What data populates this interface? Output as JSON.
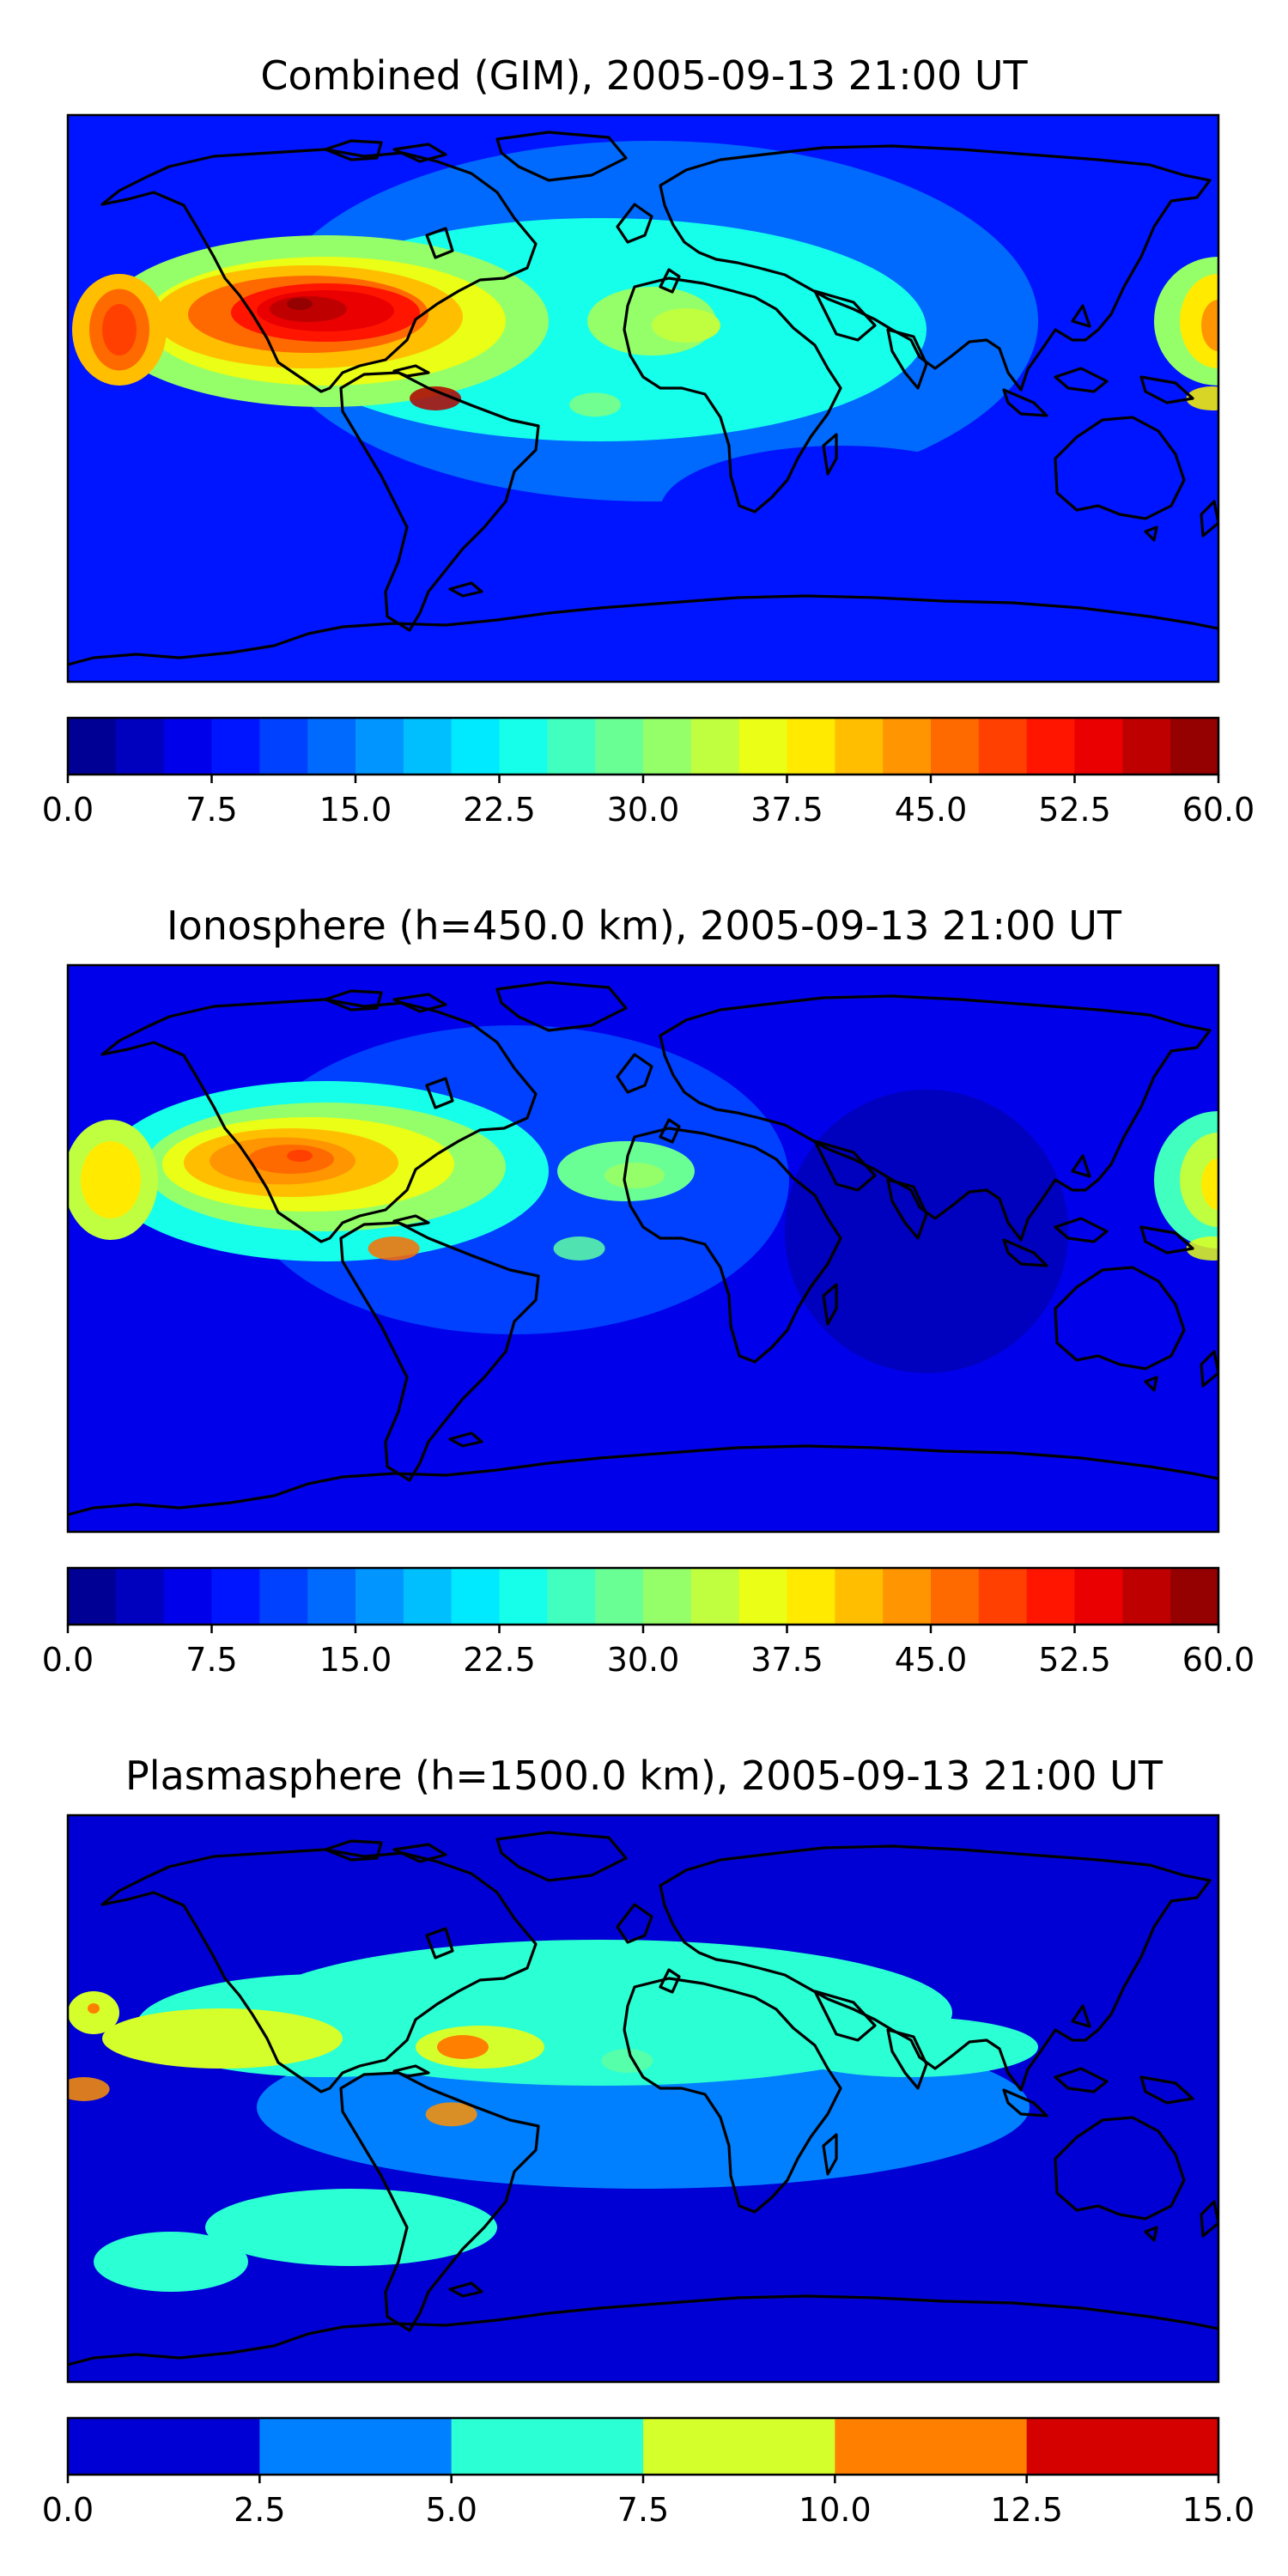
{
  "chart_data": [
    {
      "type": "heatmap",
      "subtype": "filled-contour global map",
      "title": "Combined (GIM), 2005-09-13 21:00 UT",
      "colormap": "jet",
      "colorbar": {
        "range": [
          0.0,
          60.0
        ],
        "levels": 24,
        "ticks": [
          "0.0",
          "7.5",
          "15.0",
          "22.5",
          "30.0",
          "37.5",
          "45.0",
          "52.5",
          "60.0"
        ]
      },
      "features": [
        {
          "region": "equatorial crest over South America / eastern Pacific",
          "lon": -65,
          "lat": 0,
          "value": 57
        },
        {
          "region": "equatorial crest west Pacific (eastern map edge)",
          "lon": 178,
          "lat": 0,
          "value": 38
        },
        {
          "region": "Atlantic equatorial band",
          "lon": -15,
          "lat": -2,
          "value": 30
        },
        {
          "region": "night side Africa/Asia",
          "value": 10
        },
        {
          "region": "high latitudes",
          "value": 6
        }
      ]
    },
    {
      "type": "heatmap",
      "subtype": "filled-contour global map",
      "title": "Ionosphere  (h=450.0 km), 2005-09-13 21:00 UT",
      "colormap": "jet",
      "colorbar": {
        "range": [
          0.0,
          60.0
        ],
        "levels": 24,
        "ticks": [
          "0.0",
          "7.5",
          "15.0",
          "22.5",
          "30.0",
          "37.5",
          "45.0",
          "52.5",
          "60.0"
        ]
      },
      "features": [
        {
          "region": "equatorial crest over South America / eastern Pacific",
          "lon": -78,
          "lat": 0,
          "value": 46
        },
        {
          "region": "equatorial crest west Pacific (eastern map edge)",
          "lon": 178,
          "lat": 0,
          "value": 36
        },
        {
          "region": "Atlantic equatorial band",
          "lon": -20,
          "lat": 0,
          "value": 28
        },
        {
          "region": "night side Africa/Asia/Indian Ocean",
          "value": 4
        },
        {
          "region": "high latitudes",
          "value": 6
        }
      ]
    },
    {
      "type": "heatmap",
      "subtype": "filled-contour global map",
      "title": "Plasmasphere (h=1500.0 km), 2005-09-13 21:00 UT",
      "colormap": "jet",
      "colorbar": {
        "range": [
          0.0,
          15.0
        ],
        "levels": 6,
        "ticks": [
          "0.0",
          "2.5",
          "5.0",
          "7.5",
          "10.0",
          "12.5",
          "15.0"
        ]
      },
      "features": [
        {
          "region": "Brazil maximum",
          "lon": -60,
          "lat": -5,
          "value": 11
        },
        {
          "region": "eastern Pacific maximum (western map edge)",
          "lon": -175,
          "lat": 3,
          "value": 11
        },
        {
          "region": "west Africa",
          "lon": -5,
          "lat": 12,
          "value": 7
        },
        {
          "region": "Indian Ocean / east Africa band",
          "value": 6
        },
        {
          "region": "mid latitudes",
          "value": 3.5
        },
        {
          "region": "high latitudes",
          "value": 1.5
        }
      ]
    }
  ]
}
